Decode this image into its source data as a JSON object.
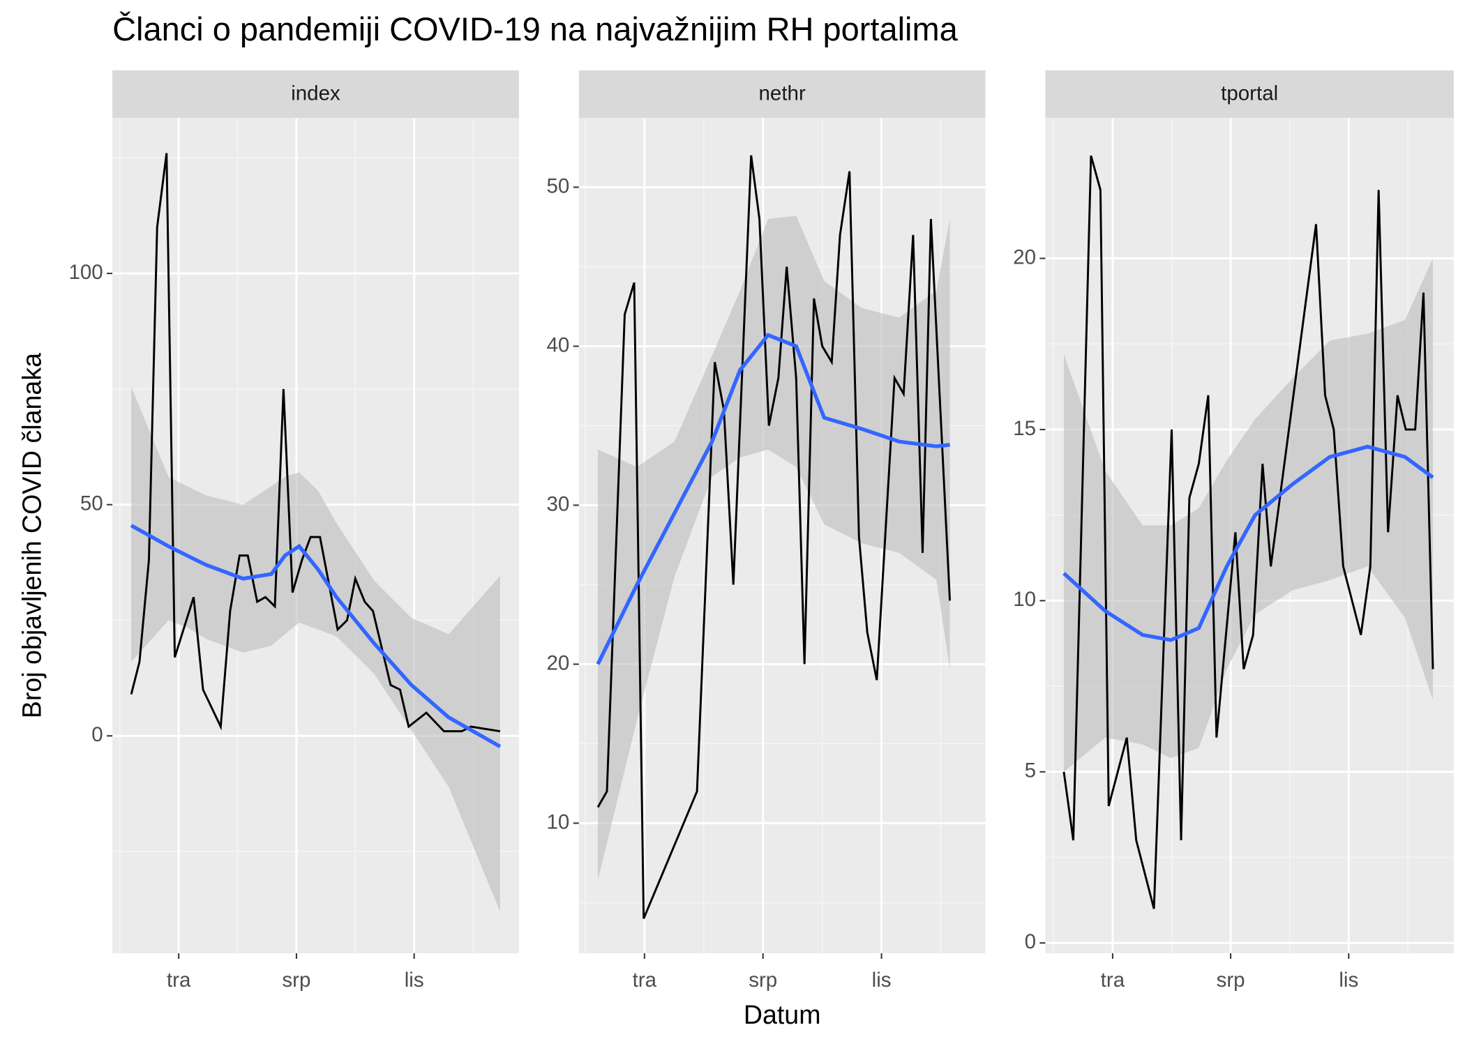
{
  "title": "Članci o pandemiji COVID-19 na najvažnijim RH portalima",
  "xlabel": "Datum",
  "ylabel": "Broj objavljenih COVID članaka",
  "chart_data": [
    {
      "type": "line",
      "title": "index",
      "color": "#000000",
      "x": [
        2.79,
        3.0,
        3.24,
        3.45,
        3.69,
        3.9,
        4.38,
        4.62,
        5.07,
        5.31,
        5.55,
        5.76,
        6.0,
        6.21,
        6.45,
        6.67,
        6.9,
        7.14,
        7.36,
        7.6,
        8.05,
        8.29,
        8.5,
        8.74,
        8.95,
        9.4,
        9.64,
        9.86,
        10.31,
        10.76,
        11.21,
        11.45,
        12.19
      ],
      "values": [
        9,
        16,
        38,
        110,
        126,
        17,
        30,
        10,
        2,
        27,
        39,
        39,
        29,
        30,
        28,
        75,
        31,
        38,
        43,
        43,
        23,
        25,
        34,
        29,
        27,
        11,
        10,
        2,
        5,
        1,
        1,
        2,
        1
      ],
      "smooth": {
        "color": "#3366ff",
        "band_color": "#bdbdbd",
        "x": [
          2.79,
          3.74,
          4.21,
          4.69,
          5.64,
          6.36,
          6.71,
          7.07,
          7.55,
          8.02,
          8.98,
          9.93,
          10.88,
          12.19
        ],
        "values": [
          45.5,
          41,
          39,
          37,
          34,
          35,
          39,
          41,
          36,
          30,
          20,
          11,
          4,
          -2.3
        ],
        "lower": [
          16,
          25,
          23.5,
          21,
          18,
          19.5,
          22,
          24.5,
          23,
          21.5,
          13.4,
          1.2,
          -11,
          -38
        ],
        "upper": [
          75.5,
          56,
          54,
          52,
          50,
          54,
          56,
          57,
          53,
          46,
          33.6,
          25.5,
          22,
          34.6
        ]
      },
      "xlim": [
        2.31,
        12.67
      ],
      "ylim": [
        -47,
        133.6
      ],
      "xticks": [
        {
          "value": 4,
          "label": "tra"
        },
        {
          "value": 7,
          "label": "srp"
        },
        {
          "value": 10,
          "label": "lis"
        }
      ],
      "minor_xticks": [
        2.5,
        5.5,
        8.5,
        11.5
      ],
      "yticks": [
        0,
        50,
        100
      ],
      "minor_yticks": [
        -25,
        25,
        75,
        125
      ],
      "grid": true
    },
    {
      "type": "line",
      "title": "nethr",
      "color": "#000000",
      "x": [
        2.82,
        3.05,
        3.5,
        3.74,
        3.98,
        5.33,
        5.78,
        6.01,
        6.25,
        6.7,
        6.91,
        7.15,
        7.39,
        7.6,
        7.84,
        8.05,
        8.29,
        8.5,
        8.74,
        8.95,
        9.19,
        9.43,
        9.64,
        9.88,
        10.33,
        10.56,
        10.8,
        11.04,
        11.25,
        11.73
      ],
      "values": [
        11,
        12,
        42,
        44,
        4,
        12,
        39,
        36,
        25,
        52,
        48,
        35,
        38,
        45,
        38,
        20,
        43,
        40,
        39,
        47,
        51,
        28,
        22,
        19,
        38,
        37,
        47,
        27,
        48,
        24
      ],
      "smooth": {
        "color": "#3366ff",
        "band_color": "#bdbdbd",
        "x": [
          2.82,
          3.81,
          4.76,
          5.71,
          6.42,
          7.13,
          7.84,
          8.55,
          9.5,
          10.45,
          11.39,
          11.73
        ],
        "values": [
          20,
          25,
          29.5,
          34,
          38.5,
          40.7,
          40,
          35.5,
          34.8,
          34,
          33.7,
          33.8
        ],
        "lower": [
          6.4,
          16.5,
          25.5,
          31.8,
          33,
          33.5,
          32.4,
          28.8,
          27.6,
          27,
          25.3,
          19.7
        ],
        "upper": [
          33.5,
          32.4,
          34,
          39.4,
          43.5,
          48,
          48.2,
          44.1,
          42.4,
          41.8,
          43.5,
          48
        ]
      },
      "xlim": [
        2.34,
        12.63
      ],
      "ylim": [
        1.82,
        54.35
      ],
      "xticks": [
        {
          "value": 4,
          "label": "tra"
        },
        {
          "value": 7,
          "label": "srp"
        },
        {
          "value": 10,
          "label": "lis"
        }
      ],
      "minor_xticks": [
        2.5,
        5.5,
        8.5,
        11.5
      ],
      "yticks": [
        10,
        20,
        30,
        40,
        50
      ],
      "minor_yticks": [
        5,
        15,
        25,
        35,
        45
      ],
      "grid": true
    },
    {
      "type": "line",
      "title": "tportal",
      "color": "#000000",
      "x": [
        2.76,
        3.0,
        3.45,
        3.69,
        3.9,
        4.36,
        4.6,
        5.05,
        5.5,
        5.74,
        5.95,
        6.19,
        6.43,
        6.64,
        6.88,
        7.12,
        7.33,
        7.57,
        7.81,
        8.02,
        9.17,
        9.4,
        9.62,
        9.86,
        10.31,
        10.55,
        10.76,
        11.0,
        11.24,
        11.45,
        11.69,
        11.9,
        12.14
      ],
      "values": [
        5,
        3,
        23,
        22,
        4,
        6,
        3,
        1,
        15,
        3,
        13,
        14,
        16,
        6,
        9,
        12,
        8,
        9,
        14,
        11,
        21,
        16,
        15,
        11,
        9,
        11,
        22,
        12,
        16,
        15,
        15,
        19,
        8
      ],
      "smooth": {
        "color": "#3366ff",
        "band_color": "#bdbdbd",
        "x": [
          2.76,
          3.81,
          4.76,
          5.48,
          6.19,
          6.9,
          7.62,
          8.57,
          9.52,
          10.48,
          11.43,
          12.14
        ],
        "values": [
          10.8,
          9.7,
          9.0,
          8.85,
          9.2,
          11,
          12.5,
          13.4,
          14.2,
          14.5,
          14.2,
          13.6
        ],
        "lower": [
          5,
          6,
          5.8,
          5.4,
          5.7,
          8,
          9.6,
          10.3,
          10.6,
          11,
          9.5,
          7.1
        ],
        "upper": [
          17.2,
          13.8,
          12.2,
          12.2,
          12.7,
          14.1,
          15.3,
          16.5,
          17.6,
          17.8,
          18.2,
          20
        ]
      },
      "xlim": [
        2.29,
        12.67
      ],
      "ylim": [
        -0.3,
        24.1
      ],
      "xticks": [
        {
          "value": 4,
          "label": "tra"
        },
        {
          "value": 7,
          "label": "srp"
        },
        {
          "value": 10,
          "label": "lis"
        }
      ],
      "minor_xticks": [
        2.5,
        5.5,
        8.5,
        11.5
      ],
      "yticks": [
        0,
        5,
        10,
        15,
        20
      ],
      "minor_yticks": [
        2.5,
        7.5,
        12.5,
        17.5
      ],
      "grid": true
    }
  ]
}
